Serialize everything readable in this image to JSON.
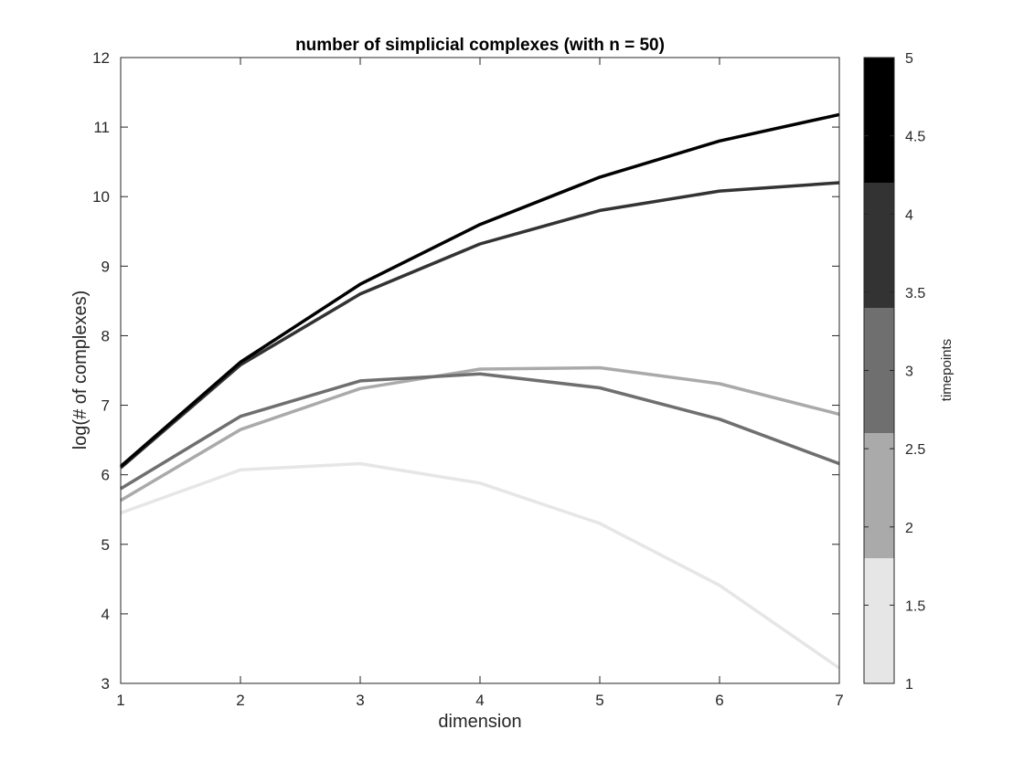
{
  "chart_data": {
    "type": "line",
    "title": "number of simplicial complexes (with n = 50)",
    "xlabel": "dimension",
    "ylabel": "log(# of complexes)",
    "xlim": [
      1,
      7
    ],
    "ylim": [
      3,
      12
    ],
    "xticks": [
      "1",
      "2",
      "3",
      "4",
      "5",
      "6",
      "7"
    ],
    "yticks": [
      "3",
      "4",
      "5",
      "6",
      "7",
      "8",
      "9",
      "10",
      "11",
      "12"
    ],
    "x": [
      1,
      2,
      3,
      4,
      5,
      6,
      7
    ],
    "series": [
      {
        "color": "#e6e6e6",
        "values": [
          5.45,
          6.07,
          6.16,
          5.88,
          5.3,
          4.41,
          3.22
        ]
      },
      {
        "color": "#aaaaaa",
        "values": [
          5.63,
          6.65,
          7.24,
          7.52,
          7.54,
          7.31,
          6.87
        ]
      },
      {
        "color": "#6f6f6f",
        "values": [
          5.8,
          6.84,
          7.35,
          7.45,
          7.25,
          6.8,
          6.16
        ]
      },
      {
        "color": "#333333",
        "values": [
          6.1,
          7.58,
          8.6,
          9.32,
          9.8,
          10.08,
          10.2
        ]
      },
      {
        "color": "#000000",
        "values": [
          6.12,
          7.62,
          8.74,
          9.6,
          10.28,
          10.8,
          11.18
        ]
      }
    ],
    "grid": false,
    "colorbar": {
      "label": "timepoints",
      "range": [
        1,
        5
      ],
      "ticks": [
        "1",
        "1.5",
        "2",
        "2.5",
        "3",
        "3.5",
        "4",
        "4.5",
        "5"
      ],
      "segments": [
        {
          "from": 1.0,
          "to": 1.8,
          "color": "#e6e6e6"
        },
        {
          "from": 1.8,
          "to": 2.6,
          "color": "#aaaaaa"
        },
        {
          "from": 2.6,
          "to": 3.4,
          "color": "#6f6f6f"
        },
        {
          "from": 3.4,
          "to": 4.2,
          "color": "#333333"
        },
        {
          "from": 4.2,
          "to": 5.0,
          "color": "#000000"
        }
      ]
    }
  }
}
